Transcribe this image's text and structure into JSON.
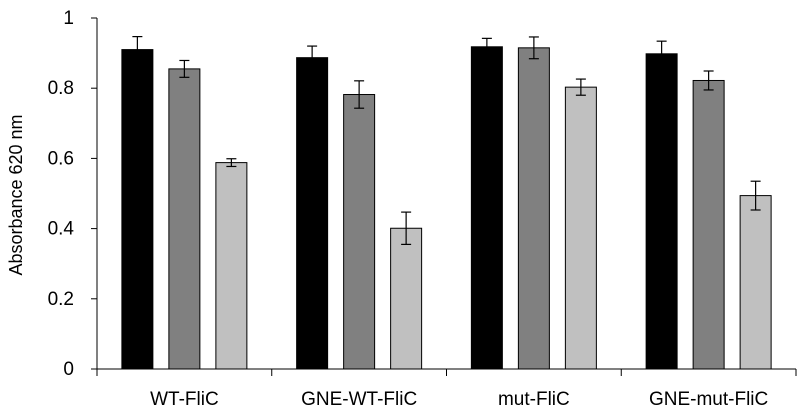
{
  "chart_data": {
    "type": "bar",
    "title": "",
    "xlabel": "",
    "ylabel": "Absorbance 620 nm",
    "ylim": [
      0,
      1
    ],
    "yticks": [
      0,
      0.2,
      0.4,
      0.6,
      0.8,
      1
    ],
    "ytick_labels": [
      "0",
      "0.2",
      "0.4",
      "0.6",
      "0.8",
      "1"
    ],
    "grid": false,
    "legend": "none",
    "categories": [
      "WT-FliC",
      "GNE-WT-FliC",
      "mut-FliC",
      "GNE-mut-FliC"
    ],
    "series": [
      {
        "color": "#000000",
        "values": [
          0.91,
          0.887,
          0.918,
          0.898
        ],
        "errors": [
          0.037,
          0.033,
          0.024,
          0.036
        ]
      },
      {
        "color": "#808080",
        "values": [
          0.855,
          0.782,
          0.915,
          0.822
        ],
        "errors": [
          0.024,
          0.039,
          0.031,
          0.027
        ]
      },
      {
        "color": "#c0c0c0",
        "values": [
          0.588,
          0.401,
          0.803,
          0.494
        ],
        "errors": [
          0.011,
          0.046,
          0.023,
          0.041
        ]
      }
    ]
  }
}
